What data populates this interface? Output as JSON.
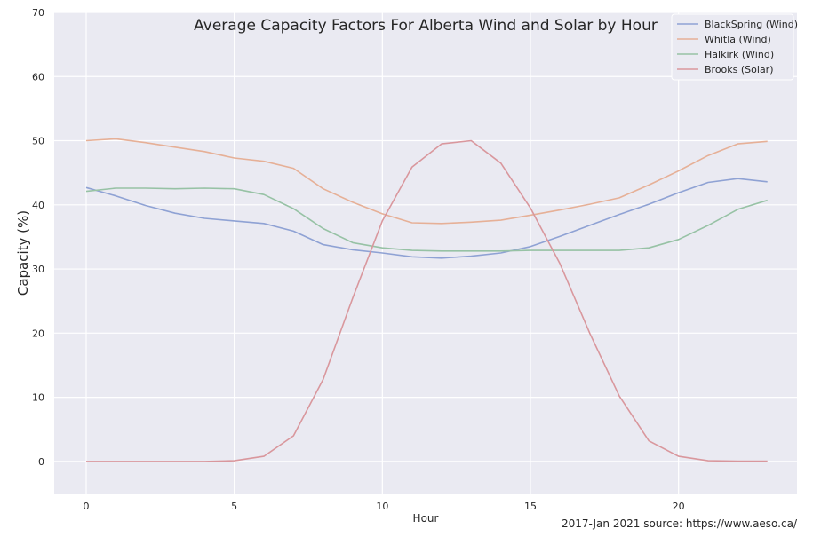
{
  "chart_data": {
    "type": "line",
    "title": "Average Capacity Factors For Alberta Wind and Solar by Hour",
    "xlabel": "Hour",
    "ylabel": "Capacity (%)",
    "footnote": "2017-Jan 2021 source: https://www.aeso.ca/",
    "xlim": [
      -1.08,
      24.0
    ],
    "ylim": [
      -5,
      70
    ],
    "xticks": [
      0,
      5,
      10,
      15,
      20
    ],
    "yticks": [
      0,
      10,
      20,
      30,
      40,
      50,
      60,
      70
    ],
    "grid": true,
    "legend_position": "top-right",
    "x": [
      0,
      1,
      2,
      3,
      4,
      5,
      6,
      7,
      8,
      9,
      10,
      11,
      12,
      13,
      14,
      15,
      16,
      17,
      18,
      19,
      20,
      21,
      22,
      23
    ],
    "series": [
      {
        "name": "BlackSpring (Wind)",
        "color": "#8fa2d4",
        "values": [
          42.7,
          41.4,
          39.9,
          38.7,
          37.9,
          37.5,
          37.1,
          35.9,
          33.8,
          33.0,
          32.5,
          31.9,
          31.7,
          32.0,
          32.5,
          33.5,
          35.1,
          36.8,
          38.5,
          40.1,
          41.9,
          43.5,
          44.1,
          43.6
        ]
      },
      {
        "name": "Whitla (Wind)",
        "color": "#e6b097",
        "values": [
          50.0,
          50.3,
          49.7,
          49.0,
          48.3,
          47.3,
          46.8,
          45.7,
          42.5,
          40.4,
          38.6,
          37.2,
          37.1,
          37.3,
          37.6,
          38.4,
          39.2,
          40.1,
          41.1,
          43.1,
          45.3,
          47.7,
          49.5,
          49.9
        ]
      },
      {
        "name": "Halkirk (Wind)",
        "color": "#97c2a5",
        "values": [
          42.1,
          42.6,
          42.6,
          42.5,
          42.6,
          42.5,
          41.6,
          39.4,
          36.3,
          34.1,
          33.3,
          32.9,
          32.8,
          32.8,
          32.8,
          32.9,
          32.9,
          32.9,
          32.9,
          33.3,
          34.6,
          36.8,
          39.3,
          40.7
        ]
      },
      {
        "name": "Brooks (Solar)",
        "color": "#d9979d",
        "values": [
          0.0,
          0.0,
          0.0,
          0.0,
          0.0,
          0.1,
          0.8,
          4.0,
          12.8,
          25.5,
          37.5,
          45.9,
          49.5,
          50.0,
          46.5,
          39.5,
          30.8,
          20.0,
          10.2,
          3.2,
          0.8,
          0.1,
          0.05,
          0.05
        ]
      }
    ]
  }
}
